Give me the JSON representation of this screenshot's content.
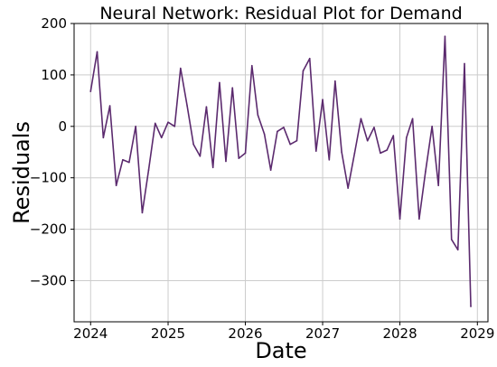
{
  "chart_data": {
    "type": "line",
    "title": "Neural Network: Residual Plot for Demand",
    "xlabel": "Date",
    "ylabel": "Residuals",
    "xlim": [
      "2023-10-15",
      "2029-02-20"
    ],
    "ylim": [
      -380,
      200
    ],
    "grid": true,
    "x_ticks": [
      {
        "label": "2024",
        "date": "2024-01-01"
      },
      {
        "label": "2025",
        "date": "2025-01-01"
      },
      {
        "label": "2026",
        "date": "2026-01-01"
      },
      {
        "label": "2027",
        "date": "2027-01-01"
      },
      {
        "label": "2028",
        "date": "2028-01-01"
      },
      {
        "label": "2029",
        "date": "2029-01-01"
      }
    ],
    "y_ticks": [
      {
        "label": "200",
        "value": 200
      },
      {
        "label": "100",
        "value": 100
      },
      {
        "label": "0",
        "value": 0
      },
      {
        "label": "−100",
        "value": -100
      },
      {
        "label": "−200",
        "value": -200
      },
      {
        "label": "−300",
        "value": -300
      }
    ],
    "series": [
      {
        "color": "#5b2a6e",
        "x": [
          "2024-01-01",
          "2024-02-01",
          "2024-03-01",
          "2024-04-01",
          "2024-05-01",
          "2024-06-01",
          "2024-07-01",
          "2024-08-01",
          "2024-09-01",
          "2024-10-01",
          "2024-11-01",
          "2024-12-01",
          "2025-01-01",
          "2025-02-01",
          "2025-03-01",
          "2025-04-01",
          "2025-05-01",
          "2025-06-01",
          "2025-07-01",
          "2025-08-01",
          "2025-09-01",
          "2025-10-01",
          "2025-11-01",
          "2025-12-01",
          "2026-01-01",
          "2026-02-01",
          "2026-03-01",
          "2026-04-01",
          "2026-05-01",
          "2026-06-01",
          "2026-07-01",
          "2026-08-01",
          "2026-09-01",
          "2026-10-01",
          "2026-11-01",
          "2026-12-01",
          "2027-01-01",
          "2027-02-01",
          "2027-03-01",
          "2027-04-01",
          "2027-05-01",
          "2027-06-01",
          "2027-07-01",
          "2027-08-01",
          "2027-09-01",
          "2027-10-01",
          "2027-11-01",
          "2027-12-01",
          "2028-01-01",
          "2028-02-01",
          "2028-03-01",
          "2028-04-01",
          "2028-05-01",
          "2028-06-01",
          "2028-07-01",
          "2028-08-01",
          "2028-09-01",
          "2028-10-01",
          "2028-11-01",
          "2028-12-01"
        ],
        "values": [
          68,
          145,
          -22,
          40,
          -115,
          -65,
          -70,
          0,
          -168,
          -85,
          6,
          -22,
          8,
          0,
          113,
          40,
          -35,
          -58,
          38,
          -80,
          85,
          -68,
          75,
          -62,
          -52,
          118,
          22,
          -15,
          -85,
          -10,
          -2,
          -35,
          -28,
          108,
          132,
          -48,
          52,
          -65,
          88,
          -50,
          -120,
          -52,
          15,
          -28,
          -2,
          -52,
          -46,
          -18,
          -180,
          -22,
          15,
          -180,
          -88,
          0,
          -115,
          175,
          -220,
          -240,
          122,
          -350
        ]
      }
    ]
  }
}
